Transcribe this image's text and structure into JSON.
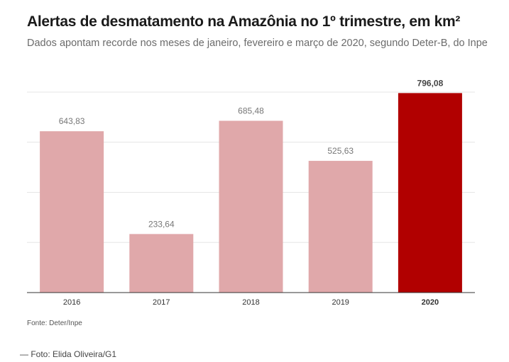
{
  "header": {
    "title": "Alertas de desmatamento na Amazônia no 1º trimestre, em km²",
    "subtitle": "Dados apontam recorde nos meses de janeiro, fevereiro e março de 2020, segundo Deter-B, do Inpe"
  },
  "chart_data": {
    "type": "bar",
    "title": "Alertas de desmatamento na Amazônia no 1º trimestre, em km²",
    "subtitle": "Dados apontam recorde nos meses de janeiro, fevereiro e março de 2020, segundo Deter-B, do Inpe",
    "categories": [
      "2016",
      "2017",
      "2018",
      "2019",
      "2020"
    ],
    "values": [
      643.83,
      233.64,
      685.48,
      525.63,
      796.08
    ],
    "value_labels": [
      "643,83",
      "233,64",
      "685,48",
      "525,63",
      "796,08"
    ],
    "highlight_index": 4,
    "colors": {
      "default": "#e0a8aa",
      "highlight": "#b10000",
      "grid": "#e6e6e6",
      "axis": "#333333"
    },
    "xlabel": "",
    "ylabel": "",
    "ylim": [
      0,
      800
    ],
    "grid": true,
    "legend": "none"
  },
  "footer": {
    "source": "Fonte: Deter/Inpe",
    "credit": "— Foto: Elida Oliveira/G1"
  }
}
